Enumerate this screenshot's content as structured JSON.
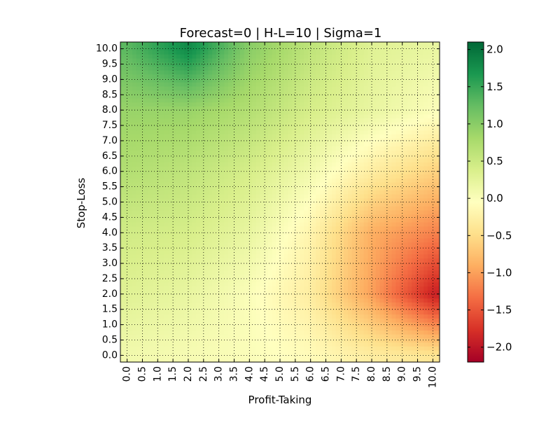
{
  "chart_data": {
    "type": "heatmap",
    "title": "Forecast=0 | H-L=10 | Sigma=1",
    "xlabel": "Profit-Taking",
    "ylabel": "Stop-Loss",
    "x_ticks": [
      "0.0",
      "0.5",
      "1.0",
      "1.5",
      "2.0",
      "2.5",
      "3.0",
      "3.5",
      "4.0",
      "4.5",
      "5.0",
      "5.5",
      "6.0",
      "6.5",
      "7.0",
      "7.5",
      "8.0",
      "8.5",
      "9.0",
      "9.5",
      "10.0"
    ],
    "y_ticks": [
      "0.0",
      "0.5",
      "1.0",
      "1.5",
      "2.0",
      "2.5",
      "3.0",
      "3.5",
      "4.0",
      "4.5",
      "5.0",
      "5.5",
      "6.0",
      "6.5",
      "7.0",
      "7.5",
      "8.0",
      "8.5",
      "9.0",
      "9.5",
      "10.0"
    ],
    "xlim": [
      0,
      10
    ],
    "ylim": [
      0,
      10
    ],
    "grid": true,
    "colormap": "RdYlGn",
    "colorbar": {
      "range": [
        -2.2,
        2.1
      ],
      "ticks": [
        "2.0",
        "1.5",
        "1.0",
        "0.5",
        "0.0",
        "−0.5",
        "−1.0",
        "−1.5",
        "−2.0"
      ],
      "tick_values": [
        2.0,
        1.5,
        1.0,
        0.5,
        0.0,
        -0.5,
        -1.0,
        -1.5,
        -2.0
      ],
      "stops": [
        "#a50026",
        "#d73027",
        "#f46d43",
        "#fdae61",
        "#fee08b",
        "#ffffbf",
        "#d9ef8b",
        "#a6d96a",
        "#66bd63",
        "#1a9850",
        "#006837"
      ]
    },
    "grid_values": {
      "x": [
        0,
        2,
        4,
        6,
        8,
        10
      ],
      "y": [
        0,
        2,
        4,
        6,
        8,
        10
      ],
      "z": [
        [
          0.1,
          0.05,
          0.0,
          -0.1,
          -0.3,
          -0.4
        ],
        [
          0.3,
          0.2,
          0.0,
          -0.3,
          -1.0,
          -1.9
        ],
        [
          0.45,
          0.4,
          0.2,
          -0.2,
          -0.9,
          -1.2
        ],
        [
          0.7,
          0.6,
          0.4,
          0.1,
          -0.3,
          -0.6
        ],
        [
          0.9,
          0.9,
          0.7,
          0.4,
          0.2,
          0.0
        ],
        [
          1.3,
          1.8,
          1.0,
          0.6,
          0.3,
          0.2
        ]
      ]
    }
  }
}
